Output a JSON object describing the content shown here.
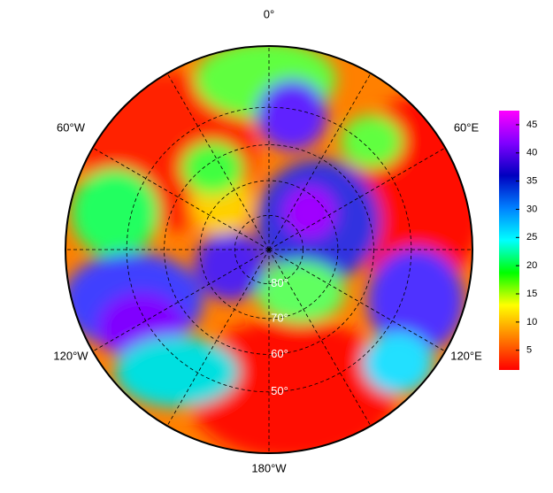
{
  "map": {
    "longitude_labels": [
      "0°",
      "60°W",
      "60°E",
      "120°W",
      "120°E",
      "180°W"
    ],
    "latitude_circles": [
      {
        "value": -80,
        "label": "80°"
      },
      {
        "value": -70,
        "label": "70°"
      },
      {
        "value": -60,
        "label": "60°"
      },
      {
        "value": -50,
        "label": "50°"
      }
    ],
    "outer_latitude": -35,
    "colorbar": {
      "clim": [
        1.5,
        47.5
      ],
      "ticks": [
        5,
        10,
        15,
        20,
        25,
        30,
        35,
        40,
        45
      ],
      "colors": [
        "#ff0000",
        "#ff8000",
        "#ffff00",
        "#00ff00",
        "#00ffff",
        "#0080ff",
        "#0000c0",
        "#8000ff",
        "#ff00ff"
      ]
    }
  }
}
